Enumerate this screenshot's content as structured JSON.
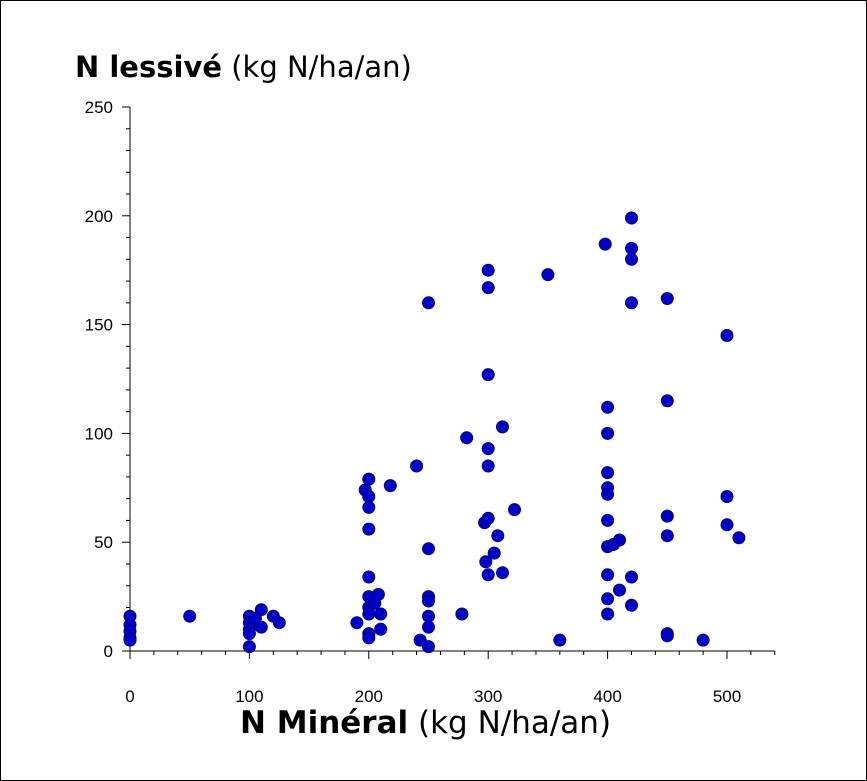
{
  "chart_data": {
    "type": "scatter",
    "title": "",
    "ylabel_bold": "N lessivé",
    "ylabel_unit": "(kg N/ha/an)",
    "xlabel_bold": "N Minéral",
    "xlabel_unit": "(kg N/ha/an)",
    "xlim": [
      0,
      540
    ],
    "ylim": [
      0,
      250
    ],
    "x_ticks": [
      0,
      100,
      200,
      300,
      400,
      500
    ],
    "y_ticks": [
      0,
      50,
      100,
      150,
      200,
      250
    ],
    "marker_color": "#0000cc",
    "grid": false,
    "points": [
      [
        0,
        16
      ],
      [
        0,
        12
      ],
      [
        0,
        9
      ],
      [
        0,
        6
      ],
      [
        0,
        5
      ],
      [
        50,
        16
      ],
      [
        100,
        16
      ],
      [
        100,
        13
      ],
      [
        100,
        10
      ],
      [
        100,
        8
      ],
      [
        100,
        2
      ],
      [
        105,
        15
      ],
      [
        110,
        19
      ],
      [
        110,
        11
      ],
      [
        120,
        16
      ],
      [
        125,
        13
      ],
      [
        190,
        13
      ],
      [
        197,
        74
      ],
      [
        200,
        79
      ],
      [
        200,
        71
      ],
      [
        200,
        66
      ],
      [
        200,
        56
      ],
      [
        200,
        34
      ],
      [
        200,
        25
      ],
      [
        200,
        20
      ],
      [
        200,
        17
      ],
      [
        200,
        8
      ],
      [
        200,
        6
      ],
      [
        205,
        22
      ],
      [
        208,
        26
      ],
      [
        210,
        17
      ],
      [
        210,
        10
      ],
      [
        218,
        76
      ],
      [
        240,
        85
      ],
      [
        243,
        5
      ],
      [
        250,
        160
      ],
      [
        250,
        47
      ],
      [
        250,
        25
      ],
      [
        250,
        23
      ],
      [
        250,
        16
      ],
      [
        250,
        11
      ],
      [
        250,
        2
      ],
      [
        278,
        17
      ],
      [
        282,
        98
      ],
      [
        297,
        59
      ],
      [
        298,
        41
      ],
      [
        300,
        175
      ],
      [
        300,
        167
      ],
      [
        300,
        127
      ],
      [
        300,
        93
      ],
      [
        300,
        85
      ],
      [
        300,
        61
      ],
      [
        300,
        35
      ],
      [
        305,
        45
      ],
      [
        308,
        53
      ],
      [
        312,
        103
      ],
      [
        312,
        36
      ],
      [
        322,
        65
      ],
      [
        350,
        173
      ],
      [
        360,
        5
      ],
      [
        398,
        187
      ],
      [
        400,
        112
      ],
      [
        400,
        100
      ],
      [
        400,
        82
      ],
      [
        400,
        75
      ],
      [
        400,
        72
      ],
      [
        400,
        60
      ],
      [
        400,
        48
      ],
      [
        400,
        35
      ],
      [
        400,
        24
      ],
      [
        400,
        17
      ],
      [
        405,
        49
      ],
      [
        410,
        51
      ],
      [
        410,
        28
      ],
      [
        420,
        199
      ],
      [
        420,
        185
      ],
      [
        420,
        180
      ],
      [
        420,
        160
      ],
      [
        420,
        34
      ],
      [
        420,
        21
      ],
      [
        450,
        162
      ],
      [
        450,
        115
      ],
      [
        450,
        62
      ],
      [
        450,
        53
      ],
      [
        450,
        8
      ],
      [
        450,
        7
      ],
      [
        480,
        5
      ],
      [
        500,
        145
      ],
      [
        500,
        71
      ],
      [
        500,
        58
      ],
      [
        510,
        52
      ]
    ]
  }
}
